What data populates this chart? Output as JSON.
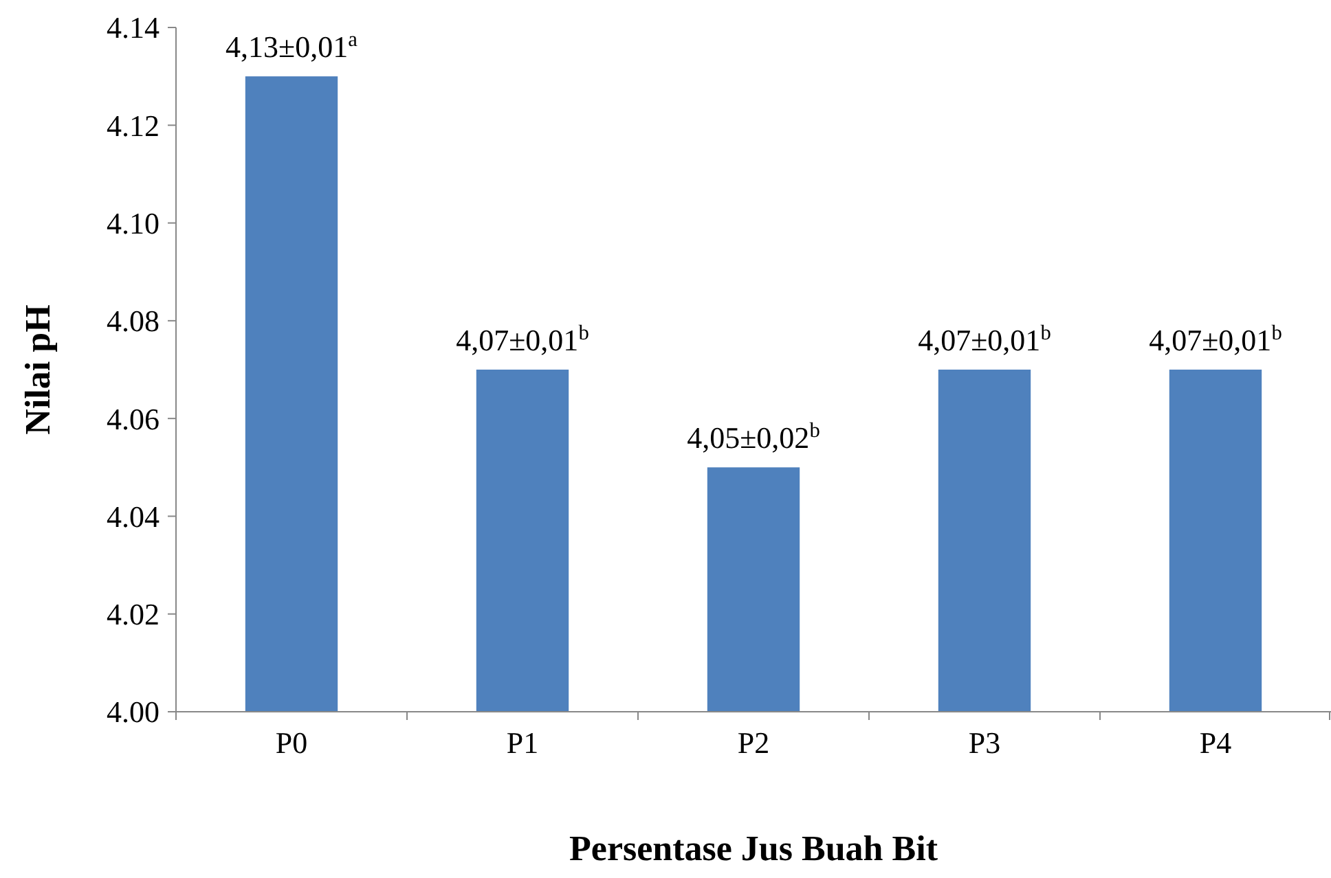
{
  "chart_data": {
    "type": "bar",
    "xlabel": "Persentase Jus Buah Bit",
    "ylabel": "Nilai pH",
    "categories": [
      "P0",
      "P1",
      "P2",
      "P3",
      "P4"
    ],
    "values": [
      4.13,
      4.07,
      4.05,
      4.07,
      4.07
    ],
    "color": "#4f81bd",
    "value_labels": [
      "4,13±0,01$^{a}$",
      "4,07±0,01$^{b}$",
      "4,05±0,02$^{b}$",
      "4,07±0,01$^{b}$",
      "4,07±0,01$^{b}$"
    ],
    "ylim": [
      4.0,
      4.14
    ],
    "yticks": [
      {
        "value": 4.0,
        "label": "4.00"
      },
      {
        "value": 4.02,
        "label": "4.02"
      },
      {
        "value": 4.04,
        "label": "4.04"
      },
      {
        "value": 4.06,
        "label": "4.06"
      },
      {
        "value": 4.08,
        "label": "4.08"
      },
      {
        "value": 4.1,
        "label": "4.10"
      },
      {
        "value": 4.12,
        "label": "4.12"
      },
      {
        "value": 4.14,
        "label": "4.14"
      }
    ],
    "grid": false
  }
}
